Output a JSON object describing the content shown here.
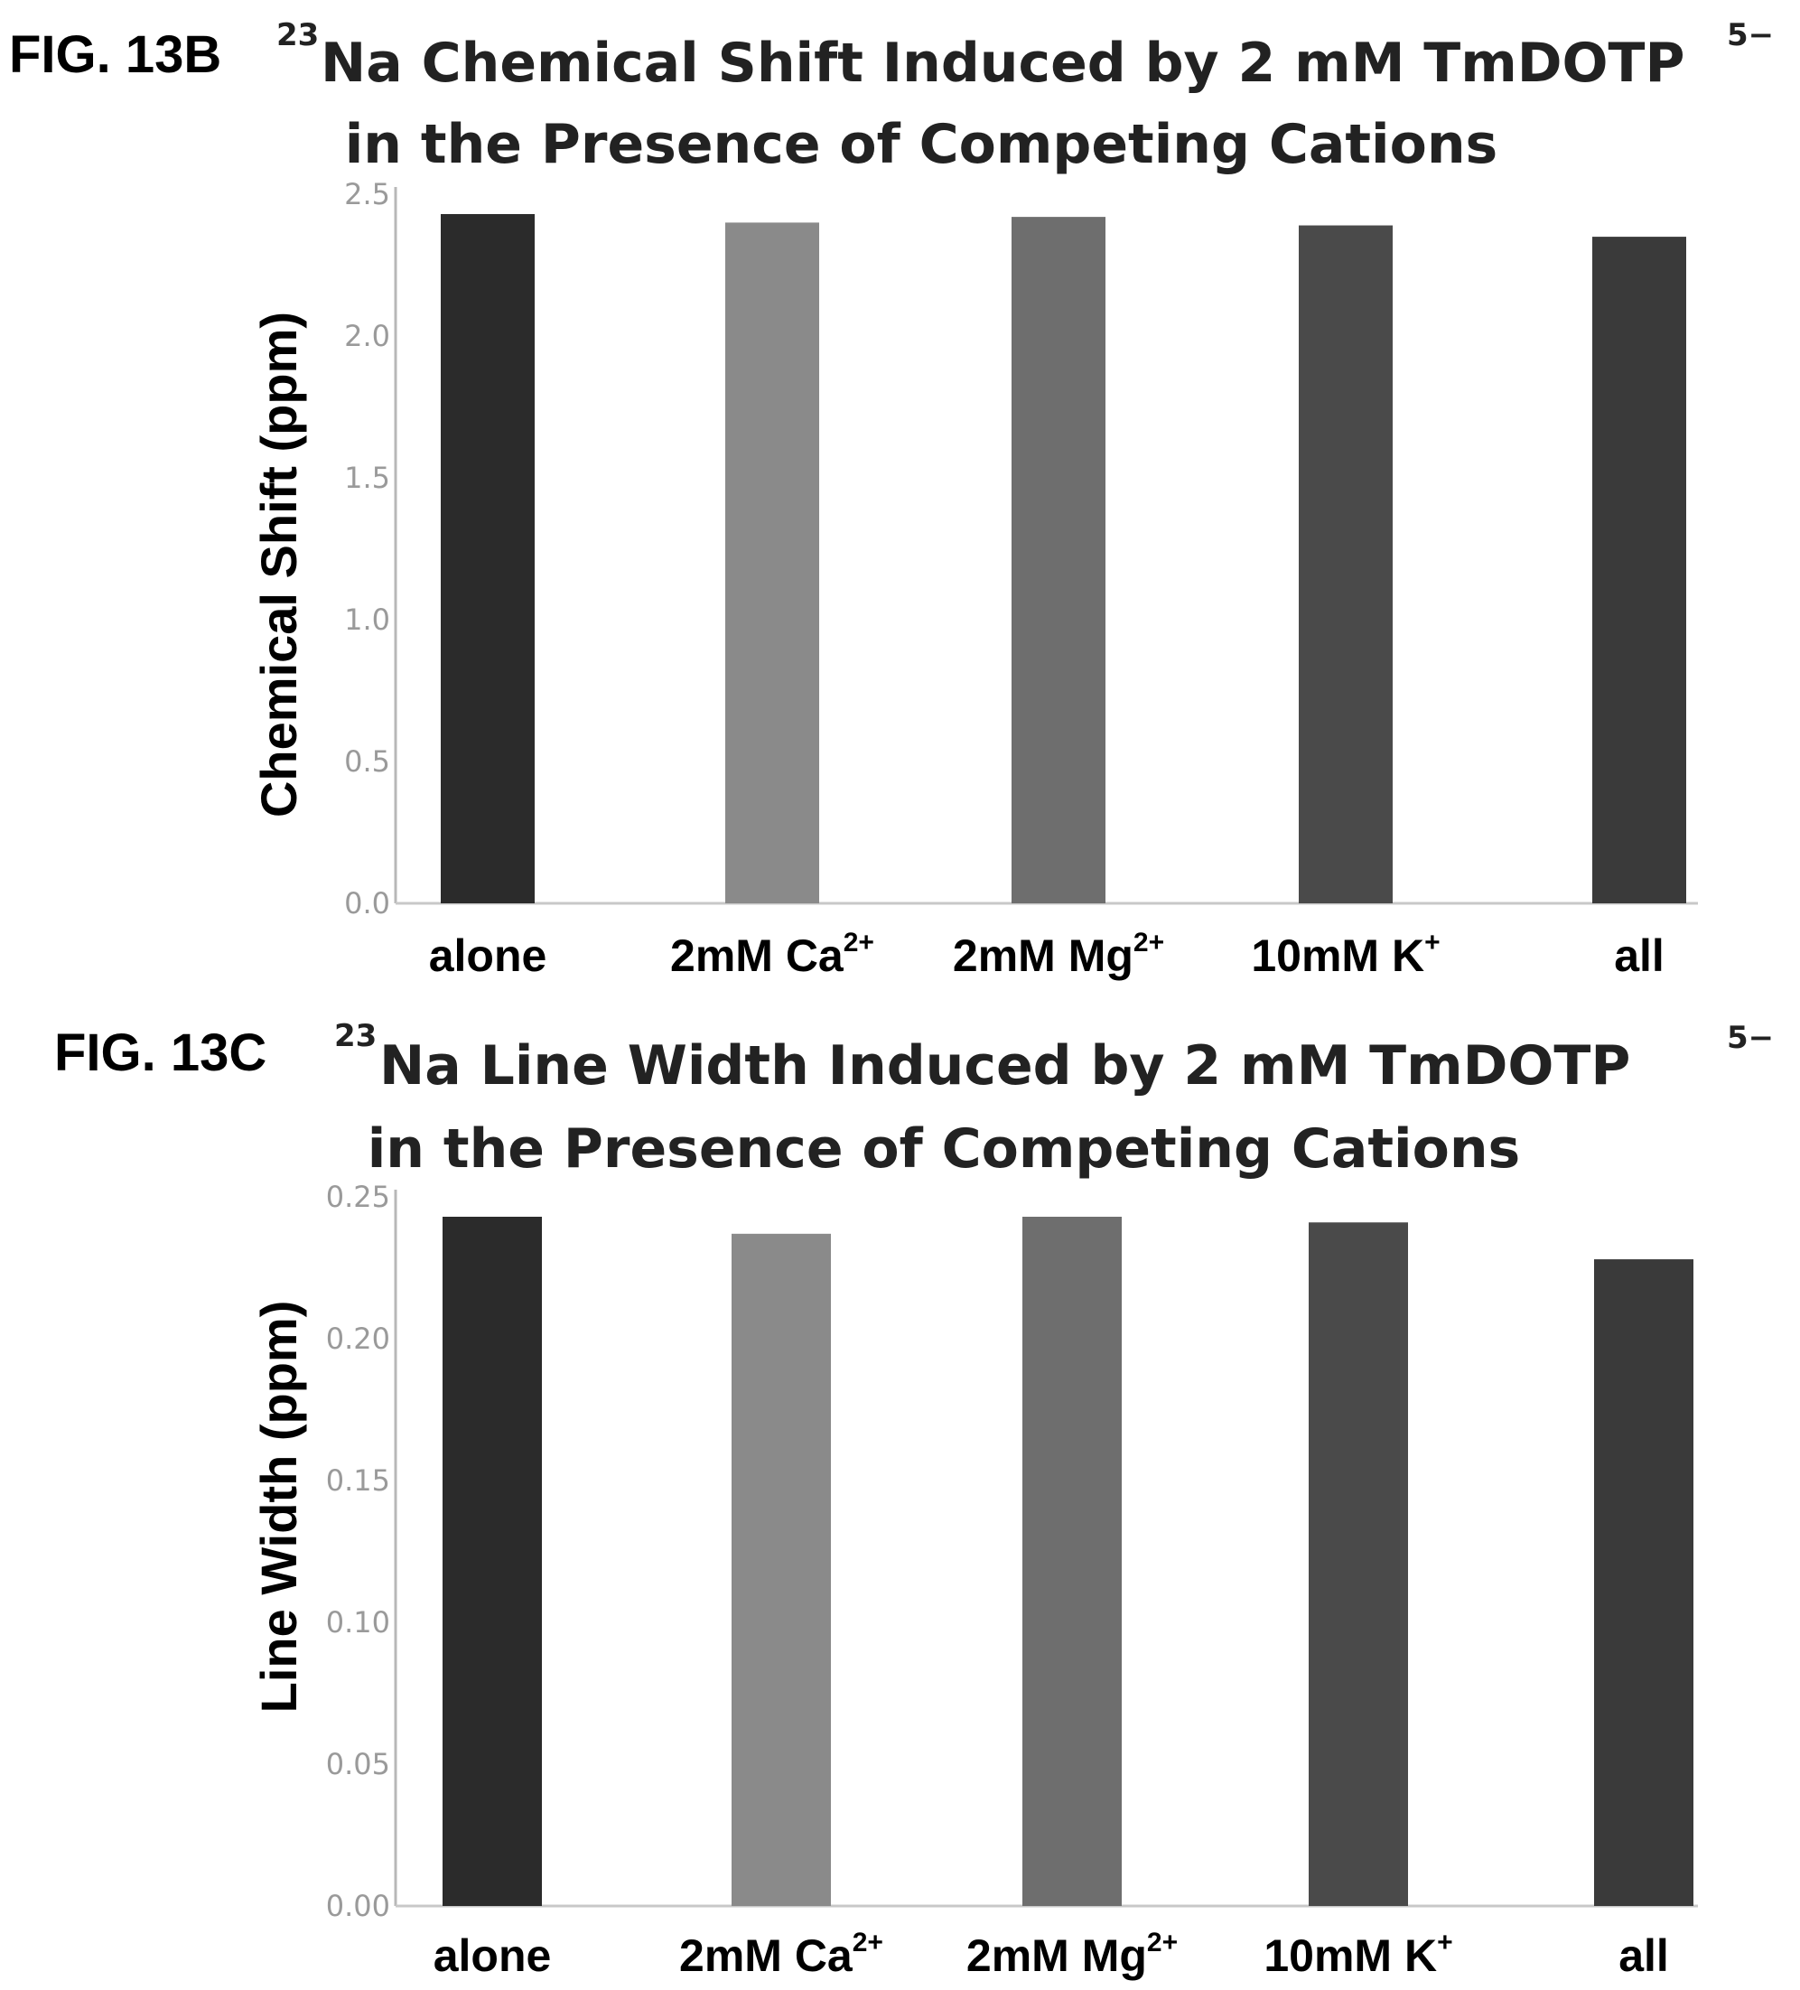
{
  "chart_data": [
    {
      "type": "bar",
      "fig_label": "FIG. 13B",
      "title_sup": "23",
      "title_line1": "Na Chemical Shift Induced by 2 mM TmDOTP",
      "title_line1_sup": "5−",
      "title_line2": "in the Presence of Competing Cations",
      "ylabel": "Chemical Shift (ppm)",
      "xlabel": "",
      "ylim": [
        0,
        2.5
      ],
      "ticks": [
        "0.0",
        "0.5",
        "1.0",
        "1.5",
        "2.0",
        "2.5"
      ],
      "categories": [
        {
          "base": "alone",
          "sup": ""
        },
        {
          "base": "2mM Ca",
          "sup": "2+"
        },
        {
          "base": "2mM Mg",
          "sup": "2+"
        },
        {
          "base": "10mM K",
          "sup": "+"
        },
        {
          "base": "all",
          "sup": ""
        }
      ],
      "values": [
        2.43,
        2.4,
        2.42,
        2.39,
        2.35
      ],
      "colors": [
        "#2b2b2b",
        "#8a8a8a",
        "#6e6e6e",
        "#4a4a4a",
        "#3a3a3a"
      ],
      "grid": false,
      "legend": "none"
    },
    {
      "type": "bar",
      "fig_label": "FIG. 13C",
      "title_sup": "23",
      "title_line1": "Na Line Width Induced by 2 mM TmDOTP",
      "title_line1_sup": "5−",
      "title_line2": "in the Presence of Competing Cations",
      "ylabel": "Line Width (ppm)",
      "xlabel": "",
      "ylim": [
        0,
        0.25
      ],
      "ticks": [
        "0.00",
        "0.05",
        "0.10",
        "0.15",
        "0.20",
        "0.25"
      ],
      "categories": [
        {
          "base": "alone",
          "sup": ""
        },
        {
          "base": "2mM Ca",
          "sup": "2+"
        },
        {
          "base": "2mM Mg",
          "sup": "2+"
        },
        {
          "base": "10mM K",
          "sup": "+"
        },
        {
          "base": "all",
          "sup": ""
        }
      ],
      "values": [
        0.243,
        0.237,
        0.243,
        0.241,
        0.228
      ],
      "colors": [
        "#2b2b2b",
        "#8a8a8a",
        "#6e6e6e",
        "#4a4a4a",
        "#3a3a3a"
      ],
      "grid": false,
      "legend": "none"
    }
  ]
}
